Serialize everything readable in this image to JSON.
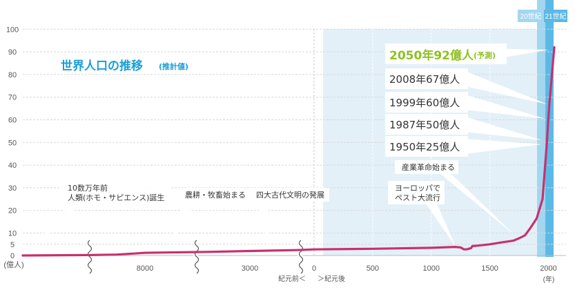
{
  "chart_data": {
    "type": "line",
    "title": "世界人口の推移",
    "title_note": "(推計値)",
    "ylim": [
      0,
      100
    ],
    "y_ticks": [
      "100",
      "90",
      "80",
      "70",
      "60",
      "50",
      "40",
      "30",
      "20",
      "10",
      "5",
      "0"
    ],
    "y_unit": "(億人)",
    "x_ticks": [
      "8000",
      "3000",
      "0",
      "500",
      "1000",
      "1500",
      "2000"
    ],
    "x_unit": "(年)",
    "era_left": "紀元前＜",
    "era_right": "＞紀元後",
    "century_labels": [
      "20世紀",
      "21世紀"
    ],
    "series": [
      {
        "x": [
          -200000,
          -100000,
          -50000,
          -10000,
          -8000,
          -5000,
          -3000,
          -1000,
          0,
          500,
          1000,
          1200,
          1250,
          1280,
          1300,
          1340,
          1350,
          1400,
          1500,
          1600,
          1700,
          1750,
          1800,
          1850,
          1900,
          1950,
          1987,
          1999,
          2008,
          2050
        ],
        "values": [
          0.0,
          0.2,
          0.4,
          1.0,
          1.2,
          1.6,
          2.0,
          2.4,
          2.7,
          3.0,
          3.4,
          3.8,
          3.6,
          2.7,
          2.7,
          3.3,
          4.2,
          4.4,
          5.0,
          5.8,
          6.6,
          7.7,
          9.0,
          12.5,
          16.5,
          25.0,
          50.0,
          60.0,
          67.0,
          92.0
        ]
      }
    ],
    "annotations": [
      {
        "lines": [
          "10数万年前",
          "人類(ホモ・サピエンス)誕生"
        ]
      },
      {
        "lines": [
          "農耕・牧畜始まる"
        ]
      },
      {
        "lines": [
          "四大古代文明の発展"
        ]
      },
      {
        "lines": [
          "ヨーロッパで",
          "ペスト大流行"
        ]
      },
      {
        "lines": [
          "産業革命始まる"
        ]
      },
      {
        "lines": [
          "1950年25億人"
        ]
      },
      {
        "lines": [
          "1987年50億人"
        ]
      },
      {
        "lines": [
          "1999年60億人"
        ]
      },
      {
        "lines": [
          "2008年67億人"
        ]
      },
      {
        "lines": [
          "2050年92億人"
        ],
        "suffix": "(予測)"
      }
    ],
    "colors": {
      "line": "#c8306e",
      "title": "#1a9ed8",
      "forecast": "#8cc21f",
      "band_light": "#e3f0f8",
      "band_20c": "#a3d6ef",
      "band_21c": "#5bb9e6",
      "label_box": "#ffffff"
    }
  }
}
